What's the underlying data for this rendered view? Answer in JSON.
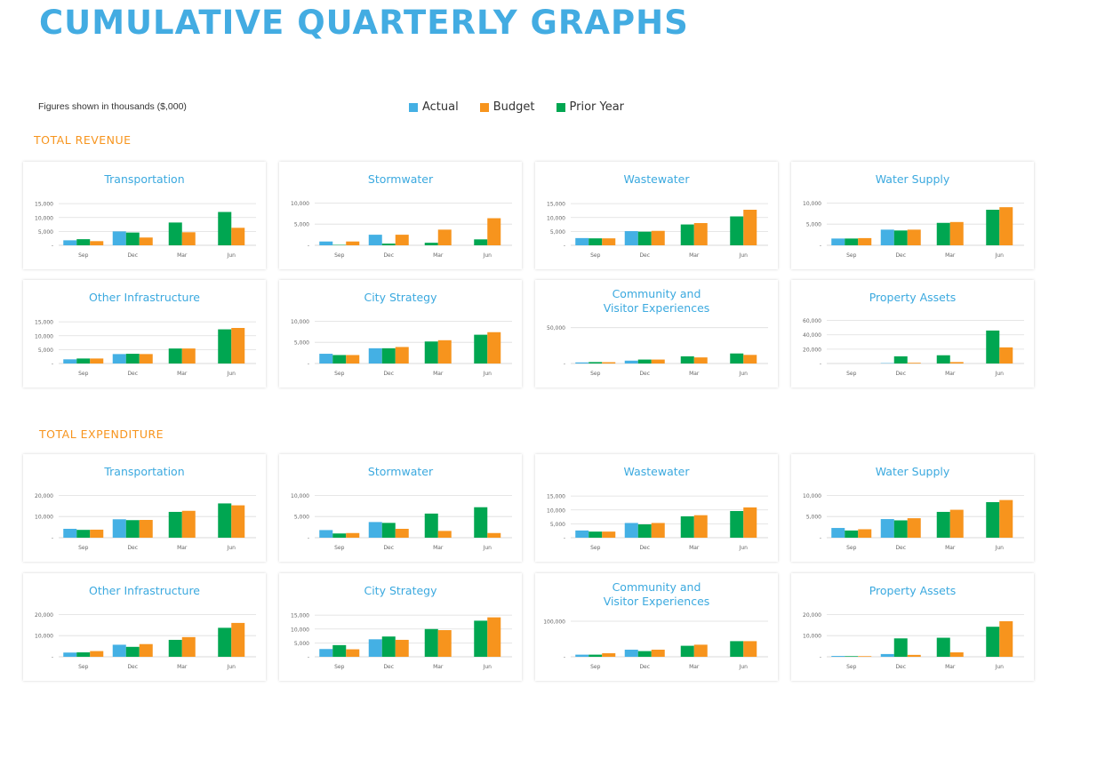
{
  "page": {
    "title": "CUMULATIVE QUARTERLY GRAPHS",
    "note": "Figures shown in thousands ($,000)"
  },
  "legend": [
    {
      "label": "Actual",
      "color": "#44b0e4"
    },
    {
      "label": "Budget",
      "color": "#f7941d"
    },
    {
      "label": "Prior Year",
      "color": "#00a651"
    }
  ],
  "sections": [
    {
      "heading": "TOTAL REVENUE"
    },
    {
      "heading": "TOTAL EXPENDITURE"
    }
  ],
  "chart_data": [
    {
      "type": "bar",
      "section": "TOTAL REVENUE",
      "title": [
        "Transportation"
      ],
      "categories": [
        "Sep",
        "Dec",
        "Mar",
        "Jun"
      ],
      "yticks": [
        {
          "value": 5000,
          "label": "5,000"
        },
        {
          "value": 10000,
          "label": "10,000"
        },
        {
          "value": 15000,
          "label": "15,000"
        }
      ],
      "ylim": [
        0,
        16000
      ],
      "series": [
        {
          "name": "Actual",
          "values": [
            1800,
            5000,
            null,
            null
          ]
        },
        {
          "name": "Prior Year",
          "values": [
            2200,
            4600,
            8200,
            12000
          ]
        },
        {
          "name": "Budget",
          "values": [
            1500,
            2800,
            4700,
            6300
          ]
        }
      ]
    },
    {
      "type": "bar",
      "section": "TOTAL REVENUE",
      "title": [
        "Stormwater"
      ],
      "categories": [
        "Sep",
        "Dec",
        "Mar",
        "Jun"
      ],
      "yticks": [
        {
          "value": 5000,
          "label": "5,000"
        },
        {
          "value": 10000,
          "label": "10,000"
        }
      ],
      "ylim": [
        0,
        10500
      ],
      "series": [
        {
          "name": "Actual",
          "values": [
            900,
            2500,
            null,
            null
          ]
        },
        {
          "name": "Prior Year",
          "values": [
            100,
            400,
            600,
            1400
          ]
        },
        {
          "name": "Budget",
          "values": [
            900,
            2500,
            3700,
            6400
          ]
        }
      ]
    },
    {
      "type": "bar",
      "section": "TOTAL REVENUE",
      "title": [
        "Wastewater"
      ],
      "categories": [
        "Sep",
        "Dec",
        "Mar",
        "Jun"
      ],
      "yticks": [
        {
          "value": 5000,
          "label": "5,000"
        },
        {
          "value": 10000,
          "label": "10,000"
        },
        {
          "value": 15000,
          "label": "15,000"
        }
      ],
      "ylim": [
        0,
        16000
      ],
      "series": [
        {
          "name": "Actual",
          "values": [
            2600,
            5100,
            null,
            null
          ]
        },
        {
          "name": "Prior Year",
          "values": [
            2500,
            4900,
            7500,
            10400
          ]
        },
        {
          "name": "Budget",
          "values": [
            2500,
            5200,
            8000,
            12800
          ]
        }
      ]
    },
    {
      "type": "bar",
      "section": "TOTAL REVENUE",
      "title": [
        "Water Supply"
      ],
      "categories": [
        "Sep",
        "Dec",
        "Mar",
        "Jun"
      ],
      "yticks": [
        {
          "value": 5000,
          "label": "5,000"
        },
        {
          "value": 10000,
          "label": "10,000"
        }
      ],
      "ylim": [
        0,
        10500
      ],
      "series": [
        {
          "name": "Actual",
          "values": [
            1600,
            3700,
            null,
            null
          ]
        },
        {
          "name": "Prior Year",
          "values": [
            1600,
            3500,
            5300,
            8400
          ]
        },
        {
          "name": "Budget",
          "values": [
            1700,
            3700,
            5500,
            9000
          ]
        }
      ]
    },
    {
      "type": "bar",
      "section": "TOTAL REVENUE",
      "title": [
        "Other Infrastructure"
      ],
      "categories": [
        "Sep",
        "Dec",
        "Mar",
        "Jun"
      ],
      "yticks": [
        {
          "value": 5000,
          "label": "5,000"
        },
        {
          "value": 10000,
          "label": "10,000"
        },
        {
          "value": 15000,
          "label": "15,000"
        }
      ],
      "ylim": [
        0,
        16000
      ],
      "series": [
        {
          "name": "Actual",
          "values": [
            1500,
            3400,
            null,
            null
          ]
        },
        {
          "name": "Prior Year",
          "values": [
            1800,
            3500,
            5400,
            12300
          ]
        },
        {
          "name": "Budget",
          "values": [
            1800,
            3400,
            5400,
            12800
          ]
        }
      ]
    },
    {
      "type": "bar",
      "section": "TOTAL REVENUE",
      "title": [
        "City Strategy"
      ],
      "categories": [
        "Sep",
        "Dec",
        "Mar",
        "Jun"
      ],
      "yticks": [
        {
          "value": 5000,
          "label": "5,000"
        },
        {
          "value": 10000,
          "label": "10,000"
        }
      ],
      "ylim": [
        0,
        10500
      ],
      "series": [
        {
          "name": "Actual",
          "values": [
            2300,
            3600,
            null,
            null
          ]
        },
        {
          "name": "Prior Year",
          "values": [
            2000,
            3600,
            5200,
            6800
          ]
        },
        {
          "name": "Budget",
          "values": [
            2000,
            3900,
            5500,
            7400
          ]
        }
      ]
    },
    {
      "type": "bar",
      "section": "TOTAL REVENUE",
      "title": [
        "Community and",
        "Visitor Experiences"
      ],
      "categories": [
        "Sep",
        "Dec",
        "Mar",
        "Jun"
      ],
      "yticks": [
        {
          "value": 50000,
          "label": "50,000"
        }
      ],
      "ylim": [
        0,
        62000
      ],
      "series": [
        {
          "name": "Actual",
          "values": [
            1500,
            4000,
            null,
            null
          ]
        },
        {
          "name": "Prior Year",
          "values": [
            2000,
            5500,
            10000,
            14000
          ]
        },
        {
          "name": "Budget",
          "values": [
            1800,
            5500,
            8500,
            12000
          ]
        }
      ]
    },
    {
      "type": "bar",
      "section": "TOTAL REVENUE",
      "title": [
        "Property Assets"
      ],
      "categories": [
        "Sep",
        "Dec",
        "Mar",
        "Jun"
      ],
      "yticks": [
        {
          "value": 20000,
          "label": "20,000"
        },
        {
          "value": 40000,
          "label": "40,000"
        },
        {
          "value": 60000,
          "label": "60,000"
        }
      ],
      "ylim": [
        0,
        62000
      ],
      "series": [
        {
          "name": "Actual",
          "values": [
            0,
            500,
            null,
            null
          ]
        },
        {
          "name": "Prior Year",
          "values": [
            0,
            10000,
            11500,
            46000
          ]
        },
        {
          "name": "Budget",
          "values": [
            0,
            1000,
            2000,
            22500
          ]
        }
      ]
    },
    {
      "type": "bar",
      "section": "TOTAL EXPENDITURE",
      "title": [
        "Transportation"
      ],
      "categories": [
        "Sep",
        "Dec",
        "Mar",
        "Jun"
      ],
      "yticks": [
        {
          "value": 10000,
          "label": "10,000"
        },
        {
          "value": 20000,
          "label": "20,000"
        }
      ],
      "ylim": [
        0,
        21000
      ],
      "series": [
        {
          "name": "Actual",
          "values": [
            4200,
            8700,
            null,
            null
          ]
        },
        {
          "name": "Prior Year",
          "values": [
            3700,
            8300,
            12200,
            16200
          ]
        },
        {
          "name": "Budget",
          "values": [
            3800,
            8400,
            12700,
            15300
          ]
        }
      ]
    },
    {
      "type": "bar",
      "section": "TOTAL EXPENDITURE",
      "title": [
        "Stormwater"
      ],
      "categories": [
        "Sep",
        "Dec",
        "Mar",
        "Jun"
      ],
      "yticks": [
        {
          "value": 5000,
          "label": "5,000"
        },
        {
          "value": 10000,
          "label": "10,000"
        }
      ],
      "ylim": [
        0,
        10500
      ],
      "series": [
        {
          "name": "Actual",
          "values": [
            1800,
            3700,
            null,
            null
          ]
        },
        {
          "name": "Prior Year",
          "values": [
            1000,
            3500,
            5700,
            7200
          ]
        },
        {
          "name": "Budget",
          "values": [
            1100,
            2100,
            1600,
            1100
          ]
        }
      ]
    },
    {
      "type": "bar",
      "section": "TOTAL EXPENDITURE",
      "title": [
        "Wastewater"
      ],
      "categories": [
        "Sep",
        "Dec",
        "Mar",
        "Jun"
      ],
      "yticks": [
        {
          "value": 5000,
          "label": "5,000"
        },
        {
          "value": 10000,
          "label": "10,000"
        },
        {
          "value": 15000,
          "label": "15,000"
        }
      ],
      "ylim": [
        0,
        16000
      ],
      "series": [
        {
          "name": "Actual",
          "values": [
            2600,
            5300,
            null,
            null
          ]
        },
        {
          "name": "Prior Year",
          "values": [
            2200,
            4800,
            7700,
            9600
          ]
        },
        {
          "name": "Budget",
          "values": [
            2200,
            5300,
            8100,
            10900
          ]
        }
      ]
    },
    {
      "type": "bar",
      "section": "TOTAL EXPENDITURE",
      "title": [
        "Water Supply"
      ],
      "categories": [
        "Sep",
        "Dec",
        "Mar",
        "Jun"
      ],
      "yticks": [
        {
          "value": 5000,
          "label": "5,000"
        },
        {
          "value": 10000,
          "label": "10,000"
        }
      ],
      "ylim": [
        0,
        10500
      ],
      "series": [
        {
          "name": "Actual",
          "values": [
            2300,
            4400,
            null,
            null
          ]
        },
        {
          "name": "Prior Year",
          "values": [
            1700,
            4100,
            6100,
            8400
          ]
        },
        {
          "name": "Budget",
          "values": [
            2000,
            4600,
            6600,
            8900
          ]
        }
      ]
    },
    {
      "type": "bar",
      "section": "TOTAL EXPENDITURE",
      "title": [
        "Other Infrastructure"
      ],
      "categories": [
        "Sep",
        "Dec",
        "Mar",
        "Jun"
      ],
      "yticks": [
        {
          "value": 10000,
          "label": "10,000"
        },
        {
          "value": 20000,
          "label": "20,000"
        }
      ],
      "ylim": [
        0,
        21000
      ],
      "series": [
        {
          "name": "Actual",
          "values": [
            2000,
            5700,
            null,
            null
          ]
        },
        {
          "name": "Prior Year",
          "values": [
            2100,
            4700,
            8000,
            13700
          ]
        },
        {
          "name": "Budget",
          "values": [
            2700,
            6000,
            9300,
            16000
          ]
        }
      ]
    },
    {
      "type": "bar",
      "section": "TOTAL EXPENDITURE",
      "title": [
        "City Strategy"
      ],
      "categories": [
        "Sep",
        "Dec",
        "Mar",
        "Jun"
      ],
      "yticks": [
        {
          "value": 5000,
          "label": "5,000"
        },
        {
          "value": 10000,
          "label": "10,000"
        },
        {
          "value": 15000,
          "label": "15,000"
        }
      ],
      "ylim": [
        0,
        16000
      ],
      "series": [
        {
          "name": "Actual",
          "values": [
            2800,
            6300,
            null,
            null
          ]
        },
        {
          "name": "Prior Year",
          "values": [
            4200,
            7300,
            10000,
            13000
          ]
        },
        {
          "name": "Budget",
          "values": [
            2700,
            6100,
            9600,
            14200
          ]
        }
      ]
    },
    {
      "type": "bar",
      "section": "TOTAL EXPENDITURE",
      "title": [
        "Community and",
        "Visitor Experiences"
      ],
      "categories": [
        "Sep",
        "Dec",
        "Mar",
        "Jun"
      ],
      "yticks": [
        {
          "value": 100000,
          "label": "100,000"
        }
      ],
      "ylim": [
        0,
        125000
      ],
      "series": [
        {
          "name": "Actual",
          "values": [
            6000,
            20000,
            null,
            null
          ]
        },
        {
          "name": "Prior Year",
          "values": [
            6000,
            16000,
            31000,
            44000
          ]
        },
        {
          "name": "Budget",
          "values": [
            10000,
            20000,
            34000,
            44000
          ]
        }
      ]
    },
    {
      "type": "bar",
      "section": "TOTAL EXPENDITURE",
      "title": [
        "Property Assets"
      ],
      "categories": [
        "Sep",
        "Dec",
        "Mar",
        "Jun"
      ],
      "yticks": [
        {
          "value": 10000,
          "label": "10,000"
        },
        {
          "value": 20000,
          "label": "20,000"
        }
      ],
      "ylim": [
        0,
        21000
      ],
      "series": [
        {
          "name": "Actual",
          "values": [
            400,
            1300,
            null,
            null
          ]
        },
        {
          "name": "Prior Year",
          "values": [
            300,
            8700,
            9000,
            14200
          ]
        },
        {
          "name": "Budget",
          "values": [
            300,
            900,
            2100,
            16800
          ]
        }
      ]
    }
  ]
}
